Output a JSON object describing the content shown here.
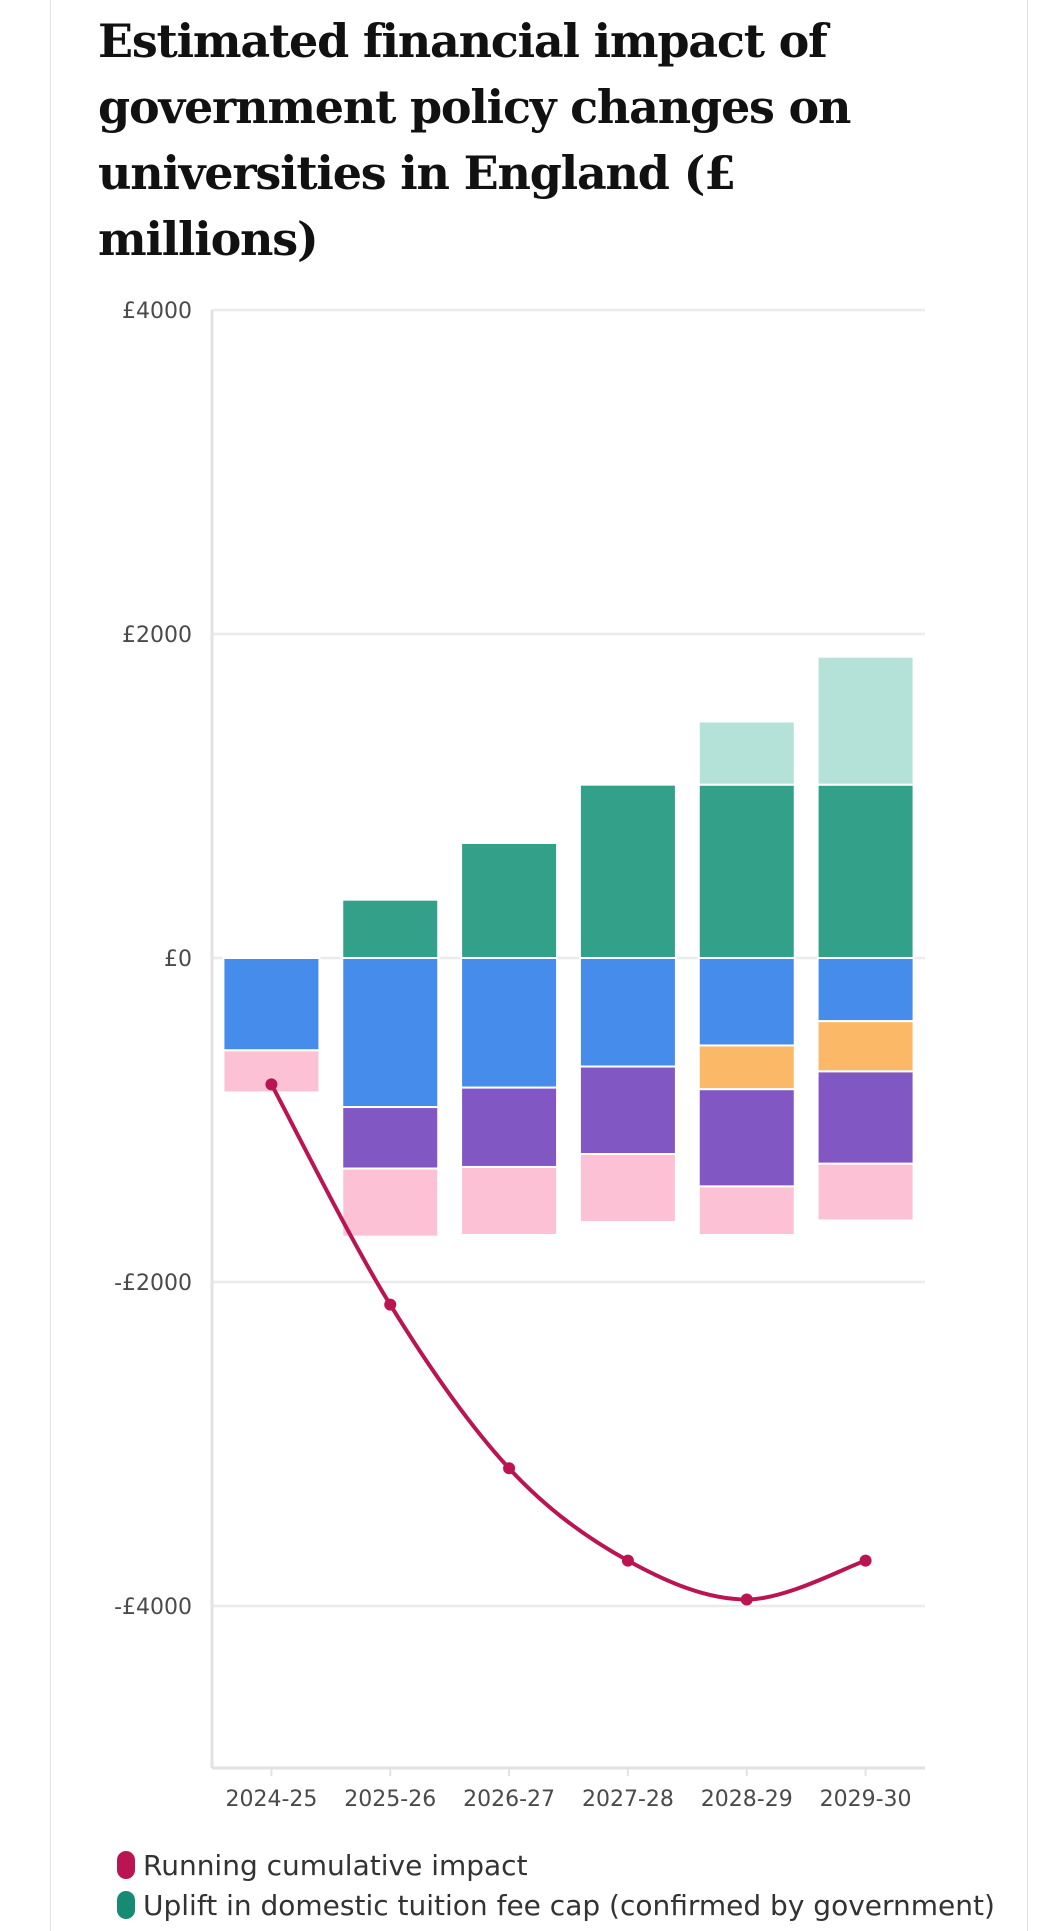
{
  "chart_data": {
    "type": "bar",
    "title": "Estimated financial impact of government policy changes on universities in England (£ millions)",
    "categories": [
      "2024-25",
      "2025-26",
      "2026-27",
      "2027-28",
      "2028-29",
      "2029-30"
    ],
    "ylim": [
      -5000,
      4000
    ],
    "y_ticks": [
      4000,
      2000,
      0,
      -2000,
      -4000
    ],
    "y_tick_labels": [
      "£4000",
      "£2000",
      "£0",
      "-£2000",
      "-£4000"
    ],
    "grid": true,
    "stacked": true,
    "series": [
      {
        "color": "#33a08a",
        "values": [
          0,
          360,
          710,
          1070,
          1070,
          1070
        ]
      },
      {
        "color": "#b5e2d8",
        "values": [
          0,
          0,
          0,
          0,
          390,
          790
        ]
      },
      {
        "color": "#468cea",
        "values": [
          10,
          0,
          0,
          0,
          0,
          0
        ]
      },
      {
        "color": "#468cea",
        "values": [
          -570,
          -920,
          -800,
          -670,
          -540,
          -390
        ]
      },
      {
        "color": "#fbb866",
        "values": [
          0,
          0,
          0,
          0,
          -270,
          -310
        ]
      },
      {
        "color": "#8157c4",
        "values": [
          0,
          -380,
          -490,
          -540,
          -600,
          -570
        ]
      },
      {
        "color": "#fdc1d6",
        "values": [
          -260,
          -420,
          -420,
          -420,
          -300,
          -350
        ]
      }
    ],
    "line_series": {
      "color": "#ba1452",
      "values": [
        -780,
        -2140,
        -3150,
        -3720,
        -3960,
        -3720
      ]
    },
    "legend": [
      {
        "label": "Running cumulative impact",
        "color": "#ba1452"
      },
      {
        "label": "Uplift in domestic tuition fee cap (confirmed by government)",
        "color": "#168a72"
      }
    ]
  }
}
